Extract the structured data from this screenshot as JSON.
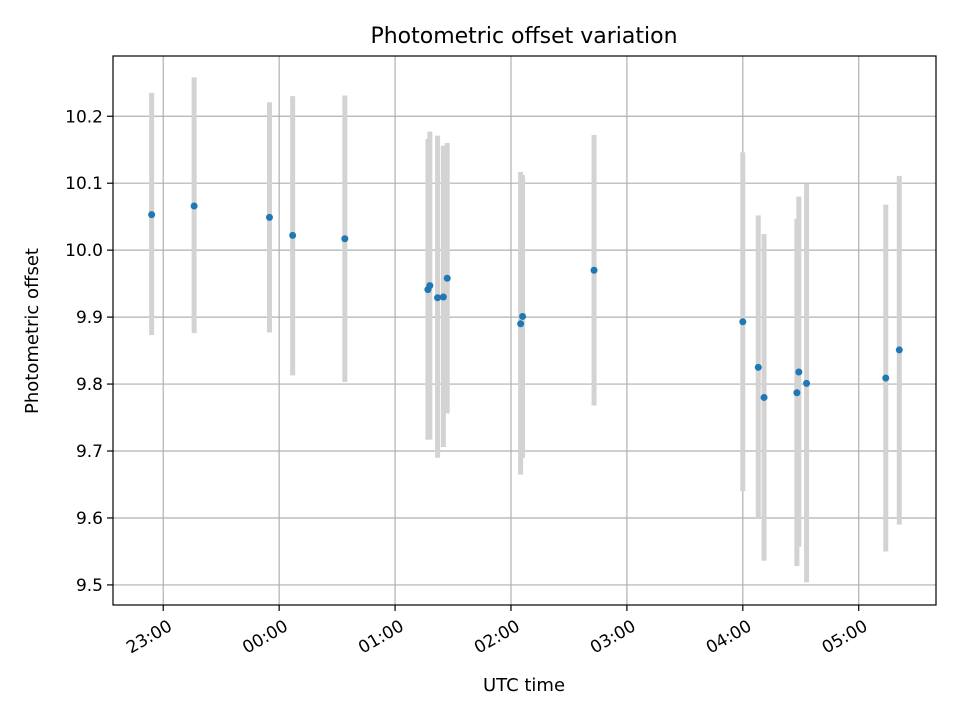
{
  "chart_data": {
    "type": "scatter",
    "title": "Photometric offset variation",
    "xlabel": "UTC time",
    "ylabel": "Photometric offset",
    "x_axis_type": "time",
    "xlim": [
      "22:34",
      "05:40"
    ],
    "ylim": [
      9.47,
      10.29
    ],
    "x_ticks": [
      "23:00",
      "00:00",
      "01:00",
      "02:00",
      "03:00",
      "04:00",
      "05:00"
    ],
    "y_ticks": [
      9.5,
      9.6,
      9.7,
      9.8,
      9.9,
      10.0,
      10.1,
      10.2
    ],
    "y_tick_labels": [
      "9.5",
      "9.6",
      "9.7",
      "9.8",
      "9.9",
      "10.0",
      "10.1",
      "10.2"
    ],
    "grid": true,
    "point_color": "#1f77b4",
    "errorbar_color": "#d3d3d3",
    "points": [
      {
        "x": "22:54",
        "y": 10.053,
        "ylow": 9.873,
        "yhigh": 10.235
      },
      {
        "x": "23:16",
        "y": 10.066,
        "ylow": 9.876,
        "yhigh": 10.258
      },
      {
        "x": "23:55",
        "y": 10.049,
        "ylow": 9.877,
        "yhigh": 10.221
      },
      {
        "x": "00:07",
        "y": 10.022,
        "ylow": 9.813,
        "yhigh": 10.23
      },
      {
        "x": "00:34",
        "y": 10.017,
        "ylow": 9.803,
        "yhigh": 10.231
      },
      {
        "x": "01:17",
        "y": 9.941,
        "ylow": 9.717,
        "yhigh": 10.166
      },
      {
        "x": "01:18",
        "y": 9.947,
        "ylow": 9.717,
        "yhigh": 10.177
      },
      {
        "x": "01:22",
        "y": 9.929,
        "ylow": 9.69,
        "yhigh": 10.171
      },
      {
        "x": "01:25",
        "y": 9.93,
        "ylow": 9.706,
        "yhigh": 10.156
      },
      {
        "x": "01:27",
        "y": 9.958,
        "ylow": 9.756,
        "yhigh": 10.16
      },
      {
        "x": "02:05",
        "y": 9.89,
        "ylow": 9.665,
        "yhigh": 10.117
      },
      {
        "x": "02:06",
        "y": 9.901,
        "ylow": 9.69,
        "yhigh": 10.112
      },
      {
        "x": "02:43",
        "y": 9.97,
        "ylow": 9.768,
        "yhigh": 10.172
      },
      {
        "x": "04:00",
        "y": 9.893,
        "ylow": 9.64,
        "yhigh": 10.146
      },
      {
        "x": "04:08",
        "y": 9.825,
        "ylow": 9.6,
        "yhigh": 10.052
      },
      {
        "x": "04:11",
        "y": 9.78,
        "ylow": 9.536,
        "yhigh": 10.024
      },
      {
        "x": "04:28",
        "y": 9.787,
        "ylow": 9.528,
        "yhigh": 10.047
      },
      {
        "x": "04:29",
        "y": 9.818,
        "ylow": 9.557,
        "yhigh": 10.08
      },
      {
        "x": "04:33",
        "y": 9.801,
        "ylow": 9.504,
        "yhigh": 10.099
      },
      {
        "x": "05:14",
        "y": 9.809,
        "ylow": 9.55,
        "yhigh": 10.068
      },
      {
        "x": "05:21",
        "y": 9.851,
        "ylow": 9.59,
        "yhigh": 10.111
      }
    ]
  }
}
